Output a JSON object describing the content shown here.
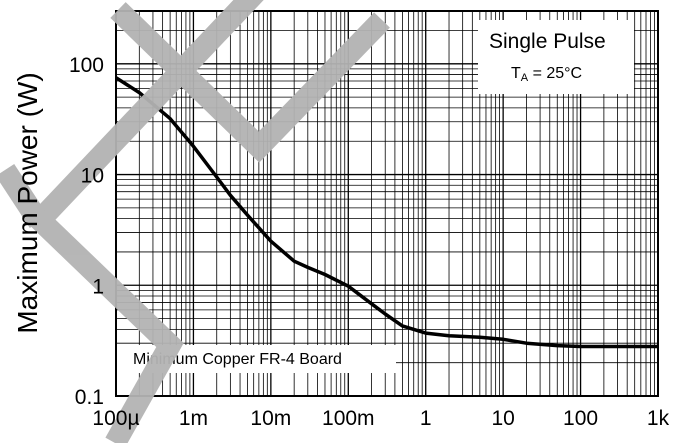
{
  "watermark_color": "#b3b3b3",
  "chart_data": {
    "type": "line",
    "xscale": "log",
    "yscale": "log",
    "xlim": [
      0.0001,
      1000
    ],
    "ylim": [
      0.1,
      300
    ],
    "xlabel": "",
    "ylabel": "Maximum Power (W)",
    "x_tick_labels": [
      "100µ",
      "1m",
      "10m",
      "100m",
      "1",
      "10",
      "100",
      "1k"
    ],
    "x_tick_values": [
      0.0001,
      0.001,
      0.01,
      0.1,
      1,
      10,
      100,
      1000
    ],
    "y_tick_labels": [
      "0.1",
      "1",
      "10",
      "100"
    ],
    "y_tick_values": [
      0.1,
      1,
      10,
      100
    ],
    "grid": true,
    "legend_box": {
      "title": "Single Pulse",
      "condition_prefix": "T",
      "condition_sub": "A",
      "condition_suffix": " = 25°C"
    },
    "annotation": "Minimum Copper FR-4 Board",
    "series": [
      {
        "x": [
          0.0001,
          0.0002,
          0.0005,
          0.001,
          0.002,
          0.003,
          0.005,
          0.01,
          0.02,
          0.03,
          0.05,
          0.1,
          0.2,
          0.3,
          0.5,
          1,
          2,
          5,
          10,
          20,
          50,
          100,
          200,
          500,
          1000
        ],
        "y": [
          75,
          55,
          32,
          18,
          9.5,
          6.5,
          4.3,
          2.5,
          1.65,
          1.45,
          1.25,
          0.98,
          0.68,
          0.55,
          0.43,
          0.37,
          0.35,
          0.34,
          0.325,
          0.3,
          0.285,
          0.28,
          0.28,
          0.28,
          0.28
        ]
      }
    ]
  }
}
